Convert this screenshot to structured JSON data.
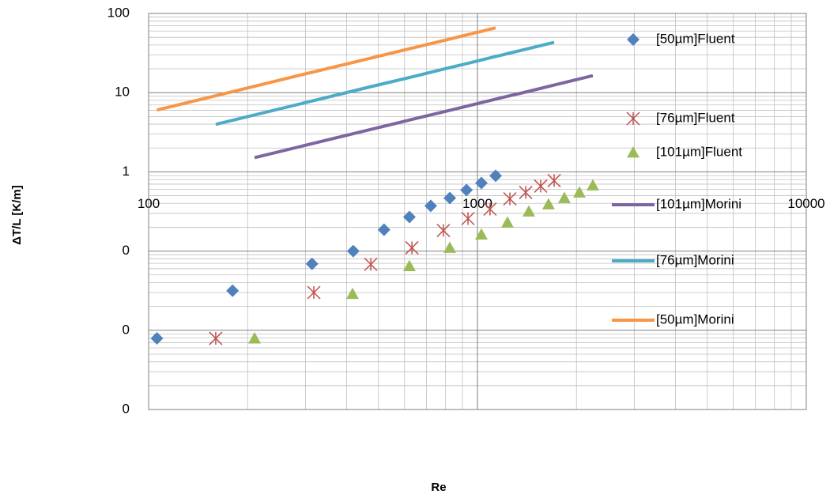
{
  "chart_data": {
    "type": "scatter",
    "y_label": "ΔT/L  [K/m]",
    "x_label": "Re",
    "xlog": true,
    "ylog": true,
    "grid": true,
    "minor_grid": true,
    "legend": "right",
    "xlim": [
      100,
      10000
    ],
    "xticks": [
      100,
      1000,
      10000
    ],
    "ylim": [
      0.001,
      100
    ],
    "yticks": [
      {
        "value": 0.001,
        "label": "0"
      },
      {
        "value": 0.01,
        "label": "0"
      },
      {
        "value": 0.1,
        "label": "0"
      },
      1,
      10,
      100
    ],
    "series": [
      {
        "name": "[50µm]Fluent",
        "color": "#4f81bd",
        "style": "marker",
        "marker": "diamond",
        "x": [
          106,
          180,
          314,
          419,
          520,
          621,
          721,
          824,
          926,
          1028,
          1136
        ],
        "values": [
          0.0079,
          0.0316,
          0.069,
          0.1,
          0.186,
          0.269,
          0.372,
          0.468,
          0.589,
          0.724,
          0.891
        ]
      },
      {
        "name": "[76µm]Fluent",
        "color": "#c0504d",
        "style": "marker",
        "marker": "asterisk",
        "x": [
          160,
          318,
          474,
          632,
          788,
          936,
          1092,
          1255,
          1402,
          1557,
          1711
        ],
        "values": [
          0.0079,
          0.03,
          0.068,
          0.11,
          0.182,
          0.257,
          0.339,
          0.457,
          0.55,
          0.661,
          0.776
        ]
      },
      {
        "name": "[101µm]Fluent",
        "color": "#9bbb59",
        "style": "marker",
        "marker": "triangle",
        "x": [
          210,
          417,
          621,
          824,
          1028,
          1234,
          1433,
          1645,
          1838,
          2042,
          2244
        ],
        "values": [
          0.0079,
          0.0288,
          0.0646,
          0.11,
          0.162,
          0.229,
          0.316,
          0.389,
          0.468,
          0.55,
          0.676
        ]
      },
      {
        "name": "[101µm]Morini",
        "color": "#8064a2",
        "style": "line",
        "x": [
          210,
          417,
          621,
          824,
          1028,
          1234,
          1433,
          1645,
          1838,
          2042,
          2244
        ],
        "values": [
          1.51,
          3.02,
          4.51,
          5.98,
          7.48,
          9.0,
          10.4,
          12.0,
          13.4,
          14.9,
          16.4
        ]
      },
      {
        "name": "[76µm]Morini",
        "color": "#4bacc6",
        "style": "line",
        "x": [
          160,
          318,
          474,
          632,
          788,
          936,
          1092,
          1255,
          1402,
          1557,
          1711
        ],
        "values": [
          3.98,
          7.94,
          11.9,
          15.8,
          19.8,
          23.5,
          27.5,
          31.6,
          35.3,
          39.3,
          43.2
        ]
      },
      {
        "name": "[50µm]Morini",
        "color": "#f79646",
        "style": "line",
        "x": [
          106,
          180,
          314,
          419,
          520,
          621,
          721,
          824,
          926,
          1028,
          1136
        ],
        "values": [
          6.03,
          10.3,
          18.1,
          24.1,
          30.0,
          35.8,
          41.6,
          47.5,
          53.5,
          59.4,
          65.8
        ]
      }
    ]
  }
}
